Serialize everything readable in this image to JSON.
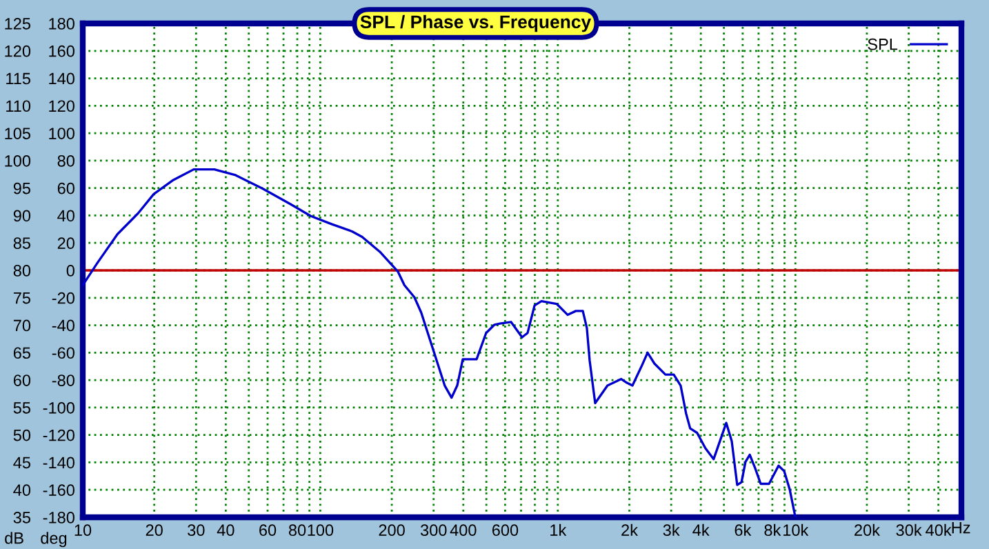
{
  "chart_data": {
    "type": "line",
    "title": "SPL / Phase vs. Frequency",
    "ylabel": "dB",
    "y2label": "deg",
    "xlim": [
      10,
      50000
    ],
    "log": "x",
    "xticks": [
      10,
      20,
      30,
      40,
      {
        "value": 50,
        "label": null
      },
      60,
      {
        "value": 70,
        "label": null
      },
      80,
      {
        "value": 90,
        "label": null
      },
      100,
      200,
      300,
      400,
      {
        "value": 500,
        "label": null
      },
      600,
      {
        "value": 700,
        "label": null
      },
      {
        "value": 800,
        "label": null
      },
      {
        "value": 900,
        "label": null
      },
      {
        "value": 1000,
        "label": "1k"
      },
      {
        "value": 2000,
        "label": "2k"
      },
      {
        "value": 3000,
        "label": "3k"
      },
      {
        "value": 4000,
        "label": "4k"
      },
      {
        "value": 5000,
        "label": null
      },
      {
        "value": 6000,
        "label": "6k"
      },
      {
        "value": 7000,
        "label": null
      },
      {
        "value": 8000,
        "label": "8k"
      },
      {
        "value": 9000,
        "label": null
      },
      {
        "value": 10000,
        "label": "10k"
      },
      {
        "value": 20000,
        "label": "20k"
      },
      {
        "value": 30000,
        "label": "30k"
      },
      {
        "value": 40000,
        "label": "40k"
      }
    ],
    "xlabel": "Hz",
    "ylim": [
      35,
      125
    ],
    "yticks": [
      35,
      40,
      45,
      50,
      55,
      60,
      65,
      70,
      75,
      80,
      85,
      90,
      95,
      100,
      105,
      110,
      115,
      120,
      125
    ],
    "y2lim": [
      -180,
      180
    ],
    "y2ticks": [
      -180,
      -160,
      -140,
      -120,
      -100,
      -80,
      -60,
      -40,
      -20,
      0,
      20,
      40,
      60,
      80,
      100,
      120,
      140,
      160,
      180
    ],
    "grid": true,
    "legend": "top right",
    "ref_lines": [
      {
        "axis": "y",
        "value": 80,
        "label": null,
        "color": "#c00000"
      }
    ],
    "series": [
      {
        "name": "SPL",
        "color": "#0000cc",
        "x": [
          10.0,
          11.5,
          14.0,
          17.1,
          19.9,
          23.9,
          29.3,
          35.8,
          43.7,
          57.2,
          74.7,
          91.2,
          112,
          136,
          150,
          178,
          212,
          226,
          249,
          266,
          304,
          334,
          357,
          377,
          398,
          455,
          499,
          541,
          570,
          635,
          707,
          746,
          798,
          853,
          988,
          1099,
          1191,
          1274,
          1325,
          1361,
          1436,
          1618,
          1849,
          1954,
          2061,
          2261,
          2387,
          2552,
          2838,
          3076,
          3289,
          3467,
          3606,
          3855,
          4178,
          4529,
          5117,
          5395,
          5689,
          5932,
          6166,
          6427,
          6776,
          7145,
          7745,
          8494,
          8974,
          9462,
          10000
        ],
        "values": [
          77.3,
          81.3,
          86.6,
          90.4,
          93.9,
          96.4,
          98.4,
          98.4,
          97.4,
          94.9,
          92.1,
          89.9,
          88.4,
          87.1,
          86.1,
          83.4,
          79.8,
          77.3,
          75.1,
          72.3,
          64.5,
          59.0,
          56.8,
          59.0,
          63.8,
          63.8,
          68.6,
          70.1,
          70.3,
          70.6,
          67.8,
          68.6,
          73.6,
          74.4,
          73.9,
          71.9,
          72.6,
          72.6,
          69.5,
          63.6,
          55.8,
          59.0,
          60.2,
          59.5,
          59.0,
          62.7,
          65.0,
          63.0,
          61.0,
          61.0,
          59.0,
          53.9,
          51.2,
          50.4,
          47.6,
          45.6,
          52.2,
          48.9,
          40.9,
          41.4,
          45.1,
          46.4,
          43.9,
          41.1,
          41.1,
          44.4,
          43.4,
          40.1,
          35.0
        ]
      }
    ]
  }
}
